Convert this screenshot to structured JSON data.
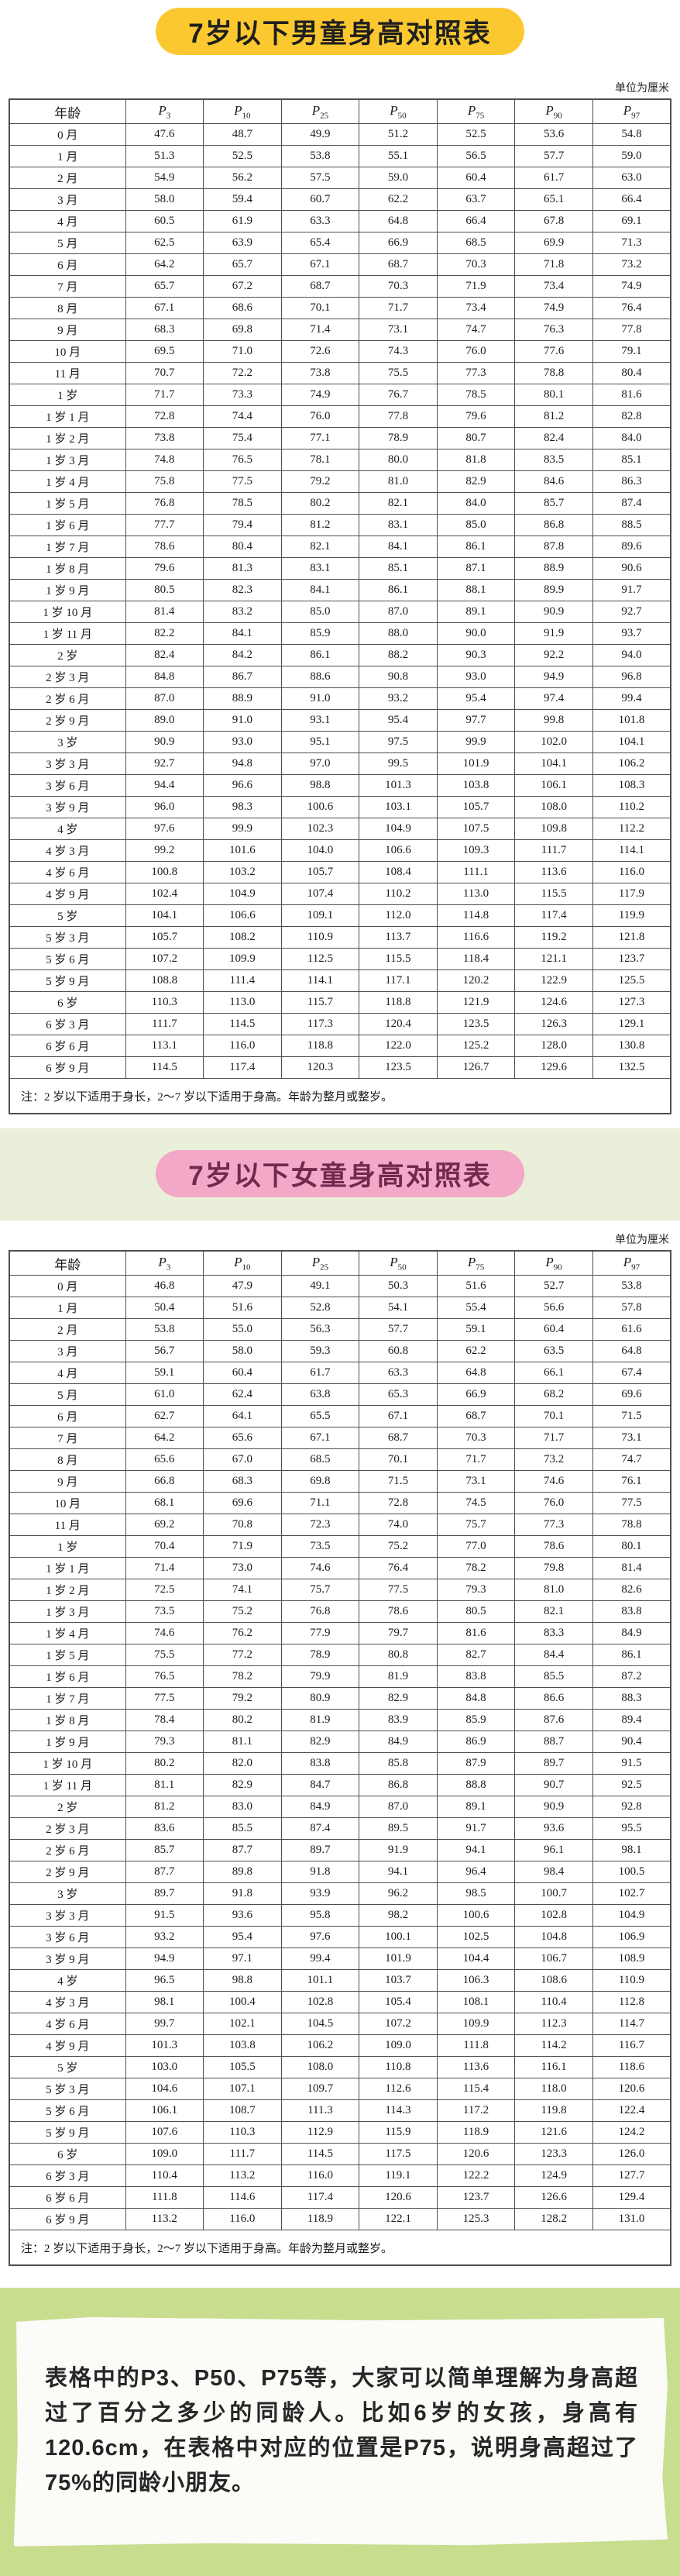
{
  "boys": {
    "title": "7岁以下男童身高对照表",
    "unit_label": "单位为厘米",
    "age_header": "年龄",
    "percentiles": [
      {
        "base": "P",
        "sub": "3"
      },
      {
        "base": "P",
        "sub": "10"
      },
      {
        "base": "P",
        "sub": "25"
      },
      {
        "base": "P",
        "sub": "50"
      },
      {
        "base": "P",
        "sub": "75"
      },
      {
        "base": "P",
        "sub": "90"
      },
      {
        "base": "P",
        "sub": "97"
      }
    ],
    "rows": [
      {
        "age": "0 月",
        "values": [
          "47.6",
          "48.7",
          "49.9",
          "51.2",
          "52.5",
          "53.6",
          "54.8"
        ]
      },
      {
        "age": "1 月",
        "values": [
          "51.3",
          "52.5",
          "53.8",
          "55.1",
          "56.5",
          "57.7",
          "59.0"
        ]
      },
      {
        "age": "2 月",
        "values": [
          "54.9",
          "56.2",
          "57.5",
          "59.0",
          "60.4",
          "61.7",
          "63.0"
        ]
      },
      {
        "age": "3 月",
        "values": [
          "58.0",
          "59.4",
          "60.7",
          "62.2",
          "63.7",
          "65.1",
          "66.4"
        ]
      },
      {
        "age": "4 月",
        "values": [
          "60.5",
          "61.9",
          "63.3",
          "64.8",
          "66.4",
          "67.8",
          "69.1"
        ]
      },
      {
        "age": "5 月",
        "values": [
          "62.5",
          "63.9",
          "65.4",
          "66.9",
          "68.5",
          "69.9",
          "71.3"
        ]
      },
      {
        "age": "6 月",
        "values": [
          "64.2",
          "65.7",
          "67.1",
          "68.7",
          "70.3",
          "71.8",
          "73.2"
        ]
      },
      {
        "age": "7 月",
        "values": [
          "65.7",
          "67.2",
          "68.7",
          "70.3",
          "71.9",
          "73.4",
          "74.9"
        ]
      },
      {
        "age": "8 月",
        "values": [
          "67.1",
          "68.6",
          "70.1",
          "71.7",
          "73.4",
          "74.9",
          "76.4"
        ]
      },
      {
        "age": "9 月",
        "values": [
          "68.3",
          "69.8",
          "71.4",
          "73.1",
          "74.7",
          "76.3",
          "77.8"
        ]
      },
      {
        "age": "10 月",
        "values": [
          "69.5",
          "71.0",
          "72.6",
          "74.3",
          "76.0",
          "77.6",
          "79.1"
        ]
      },
      {
        "age": "11 月",
        "values": [
          "70.7",
          "72.2",
          "73.8",
          "75.5",
          "77.3",
          "78.8",
          "80.4"
        ]
      },
      {
        "age": "1 岁",
        "values": [
          "71.7",
          "73.3",
          "74.9",
          "76.7",
          "78.5",
          "80.1",
          "81.6"
        ]
      },
      {
        "age": "1 岁 1 月",
        "values": [
          "72.8",
          "74.4",
          "76.0",
          "77.8",
          "79.6",
          "81.2",
          "82.8"
        ]
      },
      {
        "age": "1 岁 2 月",
        "values": [
          "73.8",
          "75.4",
          "77.1",
          "78.9",
          "80.7",
          "82.4",
          "84.0"
        ]
      },
      {
        "age": "1 岁 3 月",
        "values": [
          "74.8",
          "76.5",
          "78.1",
          "80.0",
          "81.8",
          "83.5",
          "85.1"
        ]
      },
      {
        "age": "1 岁 4 月",
        "values": [
          "75.8",
          "77.5",
          "79.2",
          "81.0",
          "82.9",
          "84.6",
          "86.3"
        ]
      },
      {
        "age": "1 岁 5 月",
        "values": [
          "76.8",
          "78.5",
          "80.2",
          "82.1",
          "84.0",
          "85.7",
          "87.4"
        ]
      },
      {
        "age": "1 岁 6 月",
        "values": [
          "77.7",
          "79.4",
          "81.2",
          "83.1",
          "85.0",
          "86.8",
          "88.5"
        ]
      },
      {
        "age": "1 岁 7 月",
        "values": [
          "78.6",
          "80.4",
          "82.1",
          "84.1",
          "86.1",
          "87.8",
          "89.6"
        ]
      },
      {
        "age": "1 岁 8 月",
        "values": [
          "79.6",
          "81.3",
          "83.1",
          "85.1",
          "87.1",
          "88.9",
          "90.6"
        ]
      },
      {
        "age": "1 岁 9 月",
        "values": [
          "80.5",
          "82.3",
          "84.1",
          "86.1",
          "88.1",
          "89.9",
          "91.7"
        ]
      },
      {
        "age": "1 岁 10 月",
        "values": [
          "81.4",
          "83.2",
          "85.0",
          "87.0",
          "89.1",
          "90.9",
          "92.7"
        ]
      },
      {
        "age": "1 岁 11 月",
        "values": [
          "82.2",
          "84.1",
          "85.9",
          "88.0",
          "90.0",
          "91.9",
          "93.7"
        ]
      },
      {
        "age": "2 岁",
        "values": [
          "82.4",
          "84.2",
          "86.1",
          "88.2",
          "90.3",
          "92.2",
          "94.0"
        ]
      },
      {
        "age": "2 岁 3 月",
        "values": [
          "84.8",
          "86.7",
          "88.6",
          "90.8",
          "93.0",
          "94.9",
          "96.8"
        ]
      },
      {
        "age": "2 岁 6 月",
        "values": [
          "87.0",
          "88.9",
          "91.0",
          "93.2",
          "95.4",
          "97.4",
          "99.4"
        ]
      },
      {
        "age": "2 岁 9 月",
        "values": [
          "89.0",
          "91.0",
          "93.1",
          "95.4",
          "97.7",
          "99.8",
          "101.8"
        ]
      },
      {
        "age": "3 岁",
        "values": [
          "90.9",
          "93.0",
          "95.1",
          "97.5",
          "99.9",
          "102.0",
          "104.1"
        ]
      },
      {
        "age": "3 岁 3 月",
        "values": [
          "92.7",
          "94.8",
          "97.0",
          "99.5",
          "101.9",
          "104.1",
          "106.2"
        ]
      },
      {
        "age": "3 岁 6 月",
        "values": [
          "94.4",
          "96.6",
          "98.8",
          "101.3",
          "103.8",
          "106.1",
          "108.3"
        ]
      },
      {
        "age": "3 岁 9 月",
        "values": [
          "96.0",
          "98.3",
          "100.6",
          "103.1",
          "105.7",
          "108.0",
          "110.2"
        ]
      },
      {
        "age": "4 岁",
        "values": [
          "97.6",
          "99.9",
          "102.3",
          "104.9",
          "107.5",
          "109.8",
          "112.2"
        ]
      },
      {
        "age": "4 岁 3 月",
        "values": [
          "99.2",
          "101.6",
          "104.0",
          "106.6",
          "109.3",
          "111.7",
          "114.1"
        ]
      },
      {
        "age": "4 岁 6 月",
        "values": [
          "100.8",
          "103.2",
          "105.7",
          "108.4",
          "111.1",
          "113.6",
          "116.0"
        ]
      },
      {
        "age": "4 岁 9 月",
        "values": [
          "102.4",
          "104.9",
          "107.4",
          "110.2",
          "113.0",
          "115.5",
          "117.9"
        ]
      },
      {
        "age": "5 岁",
        "values": [
          "104.1",
          "106.6",
          "109.1",
          "112.0",
          "114.8",
          "117.4",
          "119.9"
        ]
      },
      {
        "age": "5 岁 3 月",
        "values": [
          "105.7",
          "108.2",
          "110.9",
          "113.7",
          "116.6",
          "119.2",
          "121.8"
        ]
      },
      {
        "age": "5 岁 6 月",
        "values": [
          "107.2",
          "109.9",
          "112.5",
          "115.5",
          "118.4",
          "121.1",
          "123.7"
        ]
      },
      {
        "age": "5 岁 9 月",
        "values": [
          "108.8",
          "111.4",
          "114.1",
          "117.1",
          "120.2",
          "122.9",
          "125.5"
        ]
      },
      {
        "age": "6 岁",
        "values": [
          "110.3",
          "113.0",
          "115.7",
          "118.8",
          "121.9",
          "124.6",
          "127.3"
        ]
      },
      {
        "age": "6 岁 3 月",
        "values": [
          "111.7",
          "114.5",
          "117.3",
          "120.4",
          "123.5",
          "126.3",
          "129.1"
        ]
      },
      {
        "age": "6 岁 6 月",
        "values": [
          "113.1",
          "116.0",
          "118.8",
          "122.0",
          "125.2",
          "128.0",
          "130.8"
        ]
      },
      {
        "age": "6 岁 9 月",
        "values": [
          "114.5",
          "117.4",
          "120.3",
          "123.5",
          "126.7",
          "129.6",
          "132.5"
        ]
      }
    ],
    "note": "注：2 岁以下适用于身长，2～7 岁以下适用于身高。年龄为整月或整岁。"
  },
  "girls": {
    "title": "7岁以下女童身高对照表",
    "unit_label": "单位为厘米",
    "age_header": "年龄",
    "percentiles": [
      {
        "base": "P",
        "sub": "3"
      },
      {
        "base": "P",
        "sub": "10"
      },
      {
        "base": "P",
        "sub": "25"
      },
      {
        "base": "P",
        "sub": "50"
      },
      {
        "base": "P",
        "sub": "75"
      },
      {
        "base": "P",
        "sub": "90"
      },
      {
        "base": "P",
        "sub": "97"
      }
    ],
    "rows": [
      {
        "age": "0 月",
        "values": [
          "46.8",
          "47.9",
          "49.1",
          "50.3",
          "51.6",
          "52.7",
          "53.8"
        ]
      },
      {
        "age": "1 月",
        "values": [
          "50.4",
          "51.6",
          "52.8",
          "54.1",
          "55.4",
          "56.6",
          "57.8"
        ]
      },
      {
        "age": "2 月",
        "values": [
          "53.8",
          "55.0",
          "56.3",
          "57.7",
          "59.1",
          "60.4",
          "61.6"
        ]
      },
      {
        "age": "3 月",
        "values": [
          "56.7",
          "58.0",
          "59.3",
          "60.8",
          "62.2",
          "63.5",
          "64.8"
        ]
      },
      {
        "age": "4 月",
        "values": [
          "59.1",
          "60.4",
          "61.7",
          "63.3",
          "64.8",
          "66.1",
          "67.4"
        ]
      },
      {
        "age": "5 月",
        "values": [
          "61.0",
          "62.4",
          "63.8",
          "65.3",
          "66.9",
          "68.2",
          "69.6"
        ]
      },
      {
        "age": "6 月",
        "values": [
          "62.7",
          "64.1",
          "65.5",
          "67.1",
          "68.7",
          "70.1",
          "71.5"
        ]
      },
      {
        "age": "7 月",
        "values": [
          "64.2",
          "65.6",
          "67.1",
          "68.7",
          "70.3",
          "71.7",
          "73.1"
        ]
      },
      {
        "age": "8 月",
        "values": [
          "65.6",
          "67.0",
          "68.5",
          "70.1",
          "71.7",
          "73.2",
          "74.7"
        ]
      },
      {
        "age": "9 月",
        "values": [
          "66.8",
          "68.3",
          "69.8",
          "71.5",
          "73.1",
          "74.6",
          "76.1"
        ]
      },
      {
        "age": "10 月",
        "values": [
          "68.1",
          "69.6",
          "71.1",
          "72.8",
          "74.5",
          "76.0",
          "77.5"
        ]
      },
      {
        "age": "11 月",
        "values": [
          "69.2",
          "70.8",
          "72.3",
          "74.0",
          "75.7",
          "77.3",
          "78.8"
        ]
      },
      {
        "age": "1 岁",
        "values": [
          "70.4",
          "71.9",
          "73.5",
          "75.2",
          "77.0",
          "78.6",
          "80.1"
        ]
      },
      {
        "age": "1 岁 1 月",
        "values": [
          "71.4",
          "73.0",
          "74.6",
          "76.4",
          "78.2",
          "79.8",
          "81.4"
        ]
      },
      {
        "age": "1 岁 2 月",
        "values": [
          "72.5",
          "74.1",
          "75.7",
          "77.5",
          "79.3",
          "81.0",
          "82.6"
        ]
      },
      {
        "age": "1 岁 3 月",
        "values": [
          "73.5",
          "75.2",
          "76.8",
          "78.6",
          "80.5",
          "82.1",
          "83.8"
        ]
      },
      {
        "age": "1 岁 4 月",
        "values": [
          "74.6",
          "76.2",
          "77.9",
          "79.7",
          "81.6",
          "83.3",
          "84.9"
        ]
      },
      {
        "age": "1 岁 5 月",
        "values": [
          "75.5",
          "77.2",
          "78.9",
          "80.8",
          "82.7",
          "84.4",
          "86.1"
        ]
      },
      {
        "age": "1 岁 6 月",
        "values": [
          "76.5",
          "78.2",
          "79.9",
          "81.9",
          "83.8",
          "85.5",
          "87.2"
        ]
      },
      {
        "age": "1 岁 7 月",
        "values": [
          "77.5",
          "79.2",
          "80.9",
          "82.9",
          "84.8",
          "86.6",
          "88.3"
        ]
      },
      {
        "age": "1 岁 8 月",
        "values": [
          "78.4",
          "80.2",
          "81.9",
          "83.9",
          "85.9",
          "87.6",
          "89.4"
        ]
      },
      {
        "age": "1 岁 9 月",
        "values": [
          "79.3",
          "81.1",
          "82.9",
          "84.9",
          "86.9",
          "88.7",
          "90.4"
        ]
      },
      {
        "age": "1 岁 10 月",
        "values": [
          "80.2",
          "82.0",
          "83.8",
          "85.8",
          "87.9",
          "89.7",
          "91.5"
        ]
      },
      {
        "age": "1 岁 11 月",
        "values": [
          "81.1",
          "82.9",
          "84.7",
          "86.8",
          "88.8",
          "90.7",
          "92.5"
        ]
      },
      {
        "age": "2 岁",
        "values": [
          "81.2",
          "83.0",
          "84.9",
          "87.0",
          "89.1",
          "90.9",
          "92.8"
        ]
      },
      {
        "age": "2 岁 3 月",
        "values": [
          "83.6",
          "85.5",
          "87.4",
          "89.5",
          "91.7",
          "93.6",
          "95.5"
        ]
      },
      {
        "age": "2 岁 6 月",
        "values": [
          "85.7",
          "87.7",
          "89.7",
          "91.9",
          "94.1",
          "96.1",
          "98.1"
        ]
      },
      {
        "age": "2 岁 9 月",
        "values": [
          "87.7",
          "89.8",
          "91.8",
          "94.1",
          "96.4",
          "98.4",
          "100.5"
        ]
      },
      {
        "age": "3 岁",
        "values": [
          "89.7",
          "91.8",
          "93.9",
          "96.2",
          "98.5",
          "100.7",
          "102.7"
        ]
      },
      {
        "age": "3 岁 3 月",
        "values": [
          "91.5",
          "93.6",
          "95.8",
          "98.2",
          "100.6",
          "102.8",
          "104.9"
        ]
      },
      {
        "age": "3 岁 6 月",
        "values": [
          "93.2",
          "95.4",
          "97.6",
          "100.1",
          "102.5",
          "104.8",
          "106.9"
        ]
      },
      {
        "age": "3 岁 9 月",
        "values": [
          "94.9",
          "97.1",
          "99.4",
          "101.9",
          "104.4",
          "106.7",
          "108.9"
        ]
      },
      {
        "age": "4 岁",
        "values": [
          "96.5",
          "98.8",
          "101.1",
          "103.7",
          "106.3",
          "108.6",
          "110.9"
        ]
      },
      {
        "age": "4 岁 3 月",
        "values": [
          "98.1",
          "100.4",
          "102.8",
          "105.4",
          "108.1",
          "110.4",
          "112.8"
        ]
      },
      {
        "age": "4 岁 6 月",
        "values": [
          "99.7",
          "102.1",
          "104.5",
          "107.2",
          "109.9",
          "112.3",
          "114.7"
        ]
      },
      {
        "age": "4 岁 9 月",
        "values": [
          "101.3",
          "103.8",
          "106.2",
          "109.0",
          "111.8",
          "114.2",
          "116.7"
        ]
      },
      {
        "age": "5 岁",
        "values": [
          "103.0",
          "105.5",
          "108.0",
          "110.8",
          "113.6",
          "116.1",
          "118.6"
        ]
      },
      {
        "age": "5 岁 3 月",
        "values": [
          "104.6",
          "107.1",
          "109.7",
          "112.6",
          "115.4",
          "118.0",
          "120.6"
        ]
      },
      {
        "age": "5 岁 6 月",
        "values": [
          "106.1",
          "108.7",
          "111.3",
          "114.3",
          "117.2",
          "119.8",
          "122.4"
        ]
      },
      {
        "age": "5 岁 9 月",
        "values": [
          "107.6",
          "110.3",
          "112.9",
          "115.9",
          "118.9",
          "121.6",
          "124.2"
        ]
      },
      {
        "age": "6 岁",
        "values": [
          "109.0",
          "111.7",
          "114.5",
          "117.5",
          "120.6",
          "123.3",
          "126.0"
        ]
      },
      {
        "age": "6 岁 3 月",
        "values": [
          "110.4",
          "113.2",
          "116.0",
          "119.1",
          "122.2",
          "124.9",
          "127.7"
        ]
      },
      {
        "age": "6 岁 6 月",
        "values": [
          "111.8",
          "114.6",
          "117.4",
          "120.6",
          "123.7",
          "126.6",
          "129.4"
        ]
      },
      {
        "age": "6 岁 9 月",
        "values": [
          "113.2",
          "116.0",
          "118.9",
          "122.1",
          "125.3",
          "128.2",
          "131.0"
        ]
      }
    ],
    "note": "注：2 岁以下适用于身长，2～7 岁以下适用于身高。年龄为整月或整岁。"
  },
  "footer": {
    "text": "表格中的P3、P50、P75等，大家可以简单理解为身高超过了百分之多少的同龄人。比如6岁的女孩，身高有120.6cm，在表格中对应的位置是P75，说明身高超过了75%的同龄小朋友。"
  },
  "colors": {
    "boys_pill_bg": "#fbc82f",
    "boys_pill_text": "#1f1f1f",
    "girls_pill_bg": "#f2a8c6",
    "girls_pill_text": "#73294e",
    "girls_band_bg": "#e9efd8",
    "footer_bg": "#c8dd8e",
    "paper_bg": "#fbfbf8",
    "table_border": "#4f4f4f"
  }
}
